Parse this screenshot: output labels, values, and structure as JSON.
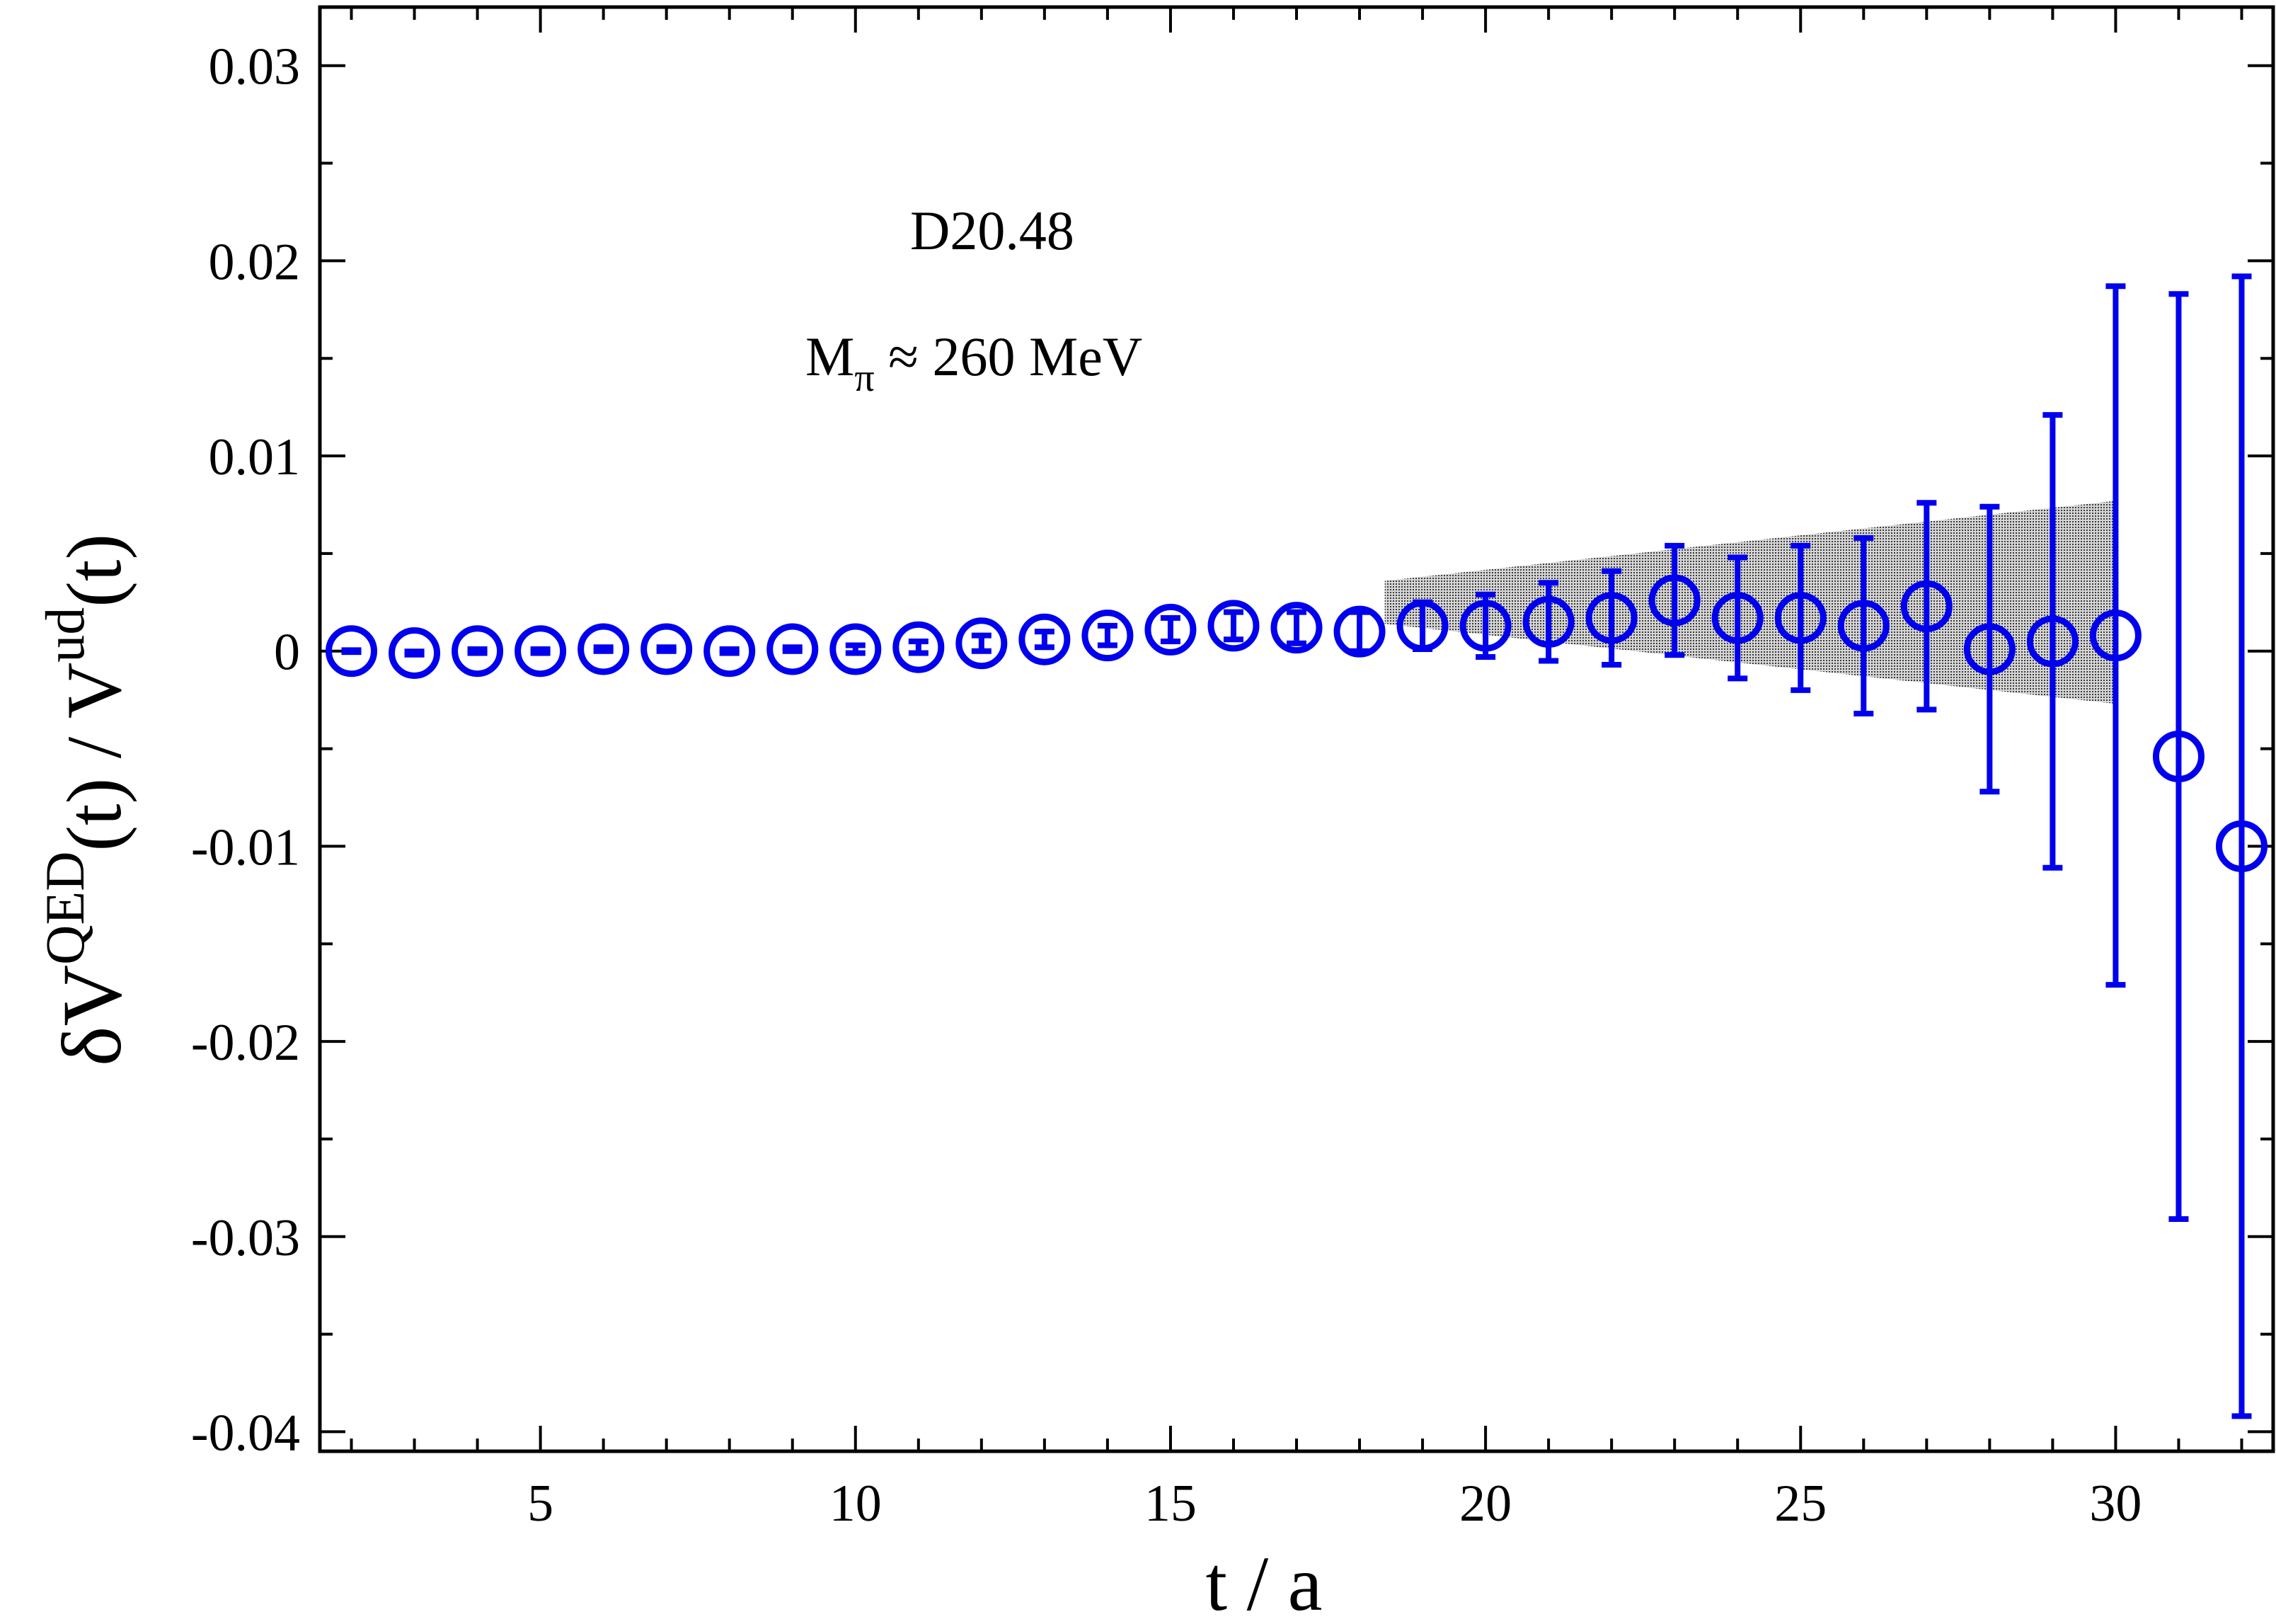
{
  "chart_data": {
    "type": "scatter",
    "xlabel": "t / a",
    "ylabel": {
      "parts": [
        "δV",
        "QED",
        "(t) / V",
        "ud",
        "(t)"
      ]
    },
    "xlim": [
      1.5,
      32.5
    ],
    "ylim": [
      -0.041,
      0.033
    ],
    "x_major_ticks": [
      5,
      10,
      15,
      20,
      25,
      30
    ],
    "x_major_tick_labels": [
      "5",
      "10",
      "15",
      "20",
      "25",
      "30"
    ],
    "x_minor_step": 1,
    "y_major_ticks": [
      -0.04,
      -0.03,
      -0.02,
      -0.01,
      0,
      0.01,
      0.02,
      0.03
    ],
    "y_major_tick_labels": [
      "-0.04",
      "-0.03",
      "-0.02",
      "-0.01",
      "0",
      "0.01",
      "0.02",
      "0.03"
    ],
    "y_minor_step": 0.005,
    "grid": false,
    "annotations": [
      {
        "id": "ensemble",
        "text": "D20.48"
      },
      {
        "id": "pion-mass",
        "parts": [
          "M",
          "π",
          " ≈ 260 MeV"
        ]
      }
    ],
    "series": [
      {
        "marker": "open-circle",
        "color": "#0000ee",
        "points": [
          {
            "x": 2,
            "y": 0.0,
            "err": 5e-05
          },
          {
            "x": 3,
            "y": -0.0001,
            "err": 8e-05
          },
          {
            "x": 4,
            "y": 0.0,
            "err": 0.0001
          },
          {
            "x": 5,
            "y": 0.0,
            "err": 0.0001
          },
          {
            "x": 6,
            "y": 0.0001,
            "err": 0.0001
          },
          {
            "x": 7,
            "y": 0.0001,
            "err": 0.0001
          },
          {
            "x": 8,
            "y": 0.0,
            "err": 0.0001
          },
          {
            "x": 9,
            "y": 0.0001,
            "err": 0.0001
          },
          {
            "x": 10,
            "y": 0.0001,
            "err": 0.0002
          },
          {
            "x": 11,
            "y": 0.0002,
            "err": 0.0003
          },
          {
            "x": 12,
            "y": 0.0004,
            "err": 0.0004
          },
          {
            "x": 13,
            "y": 0.0006,
            "err": 0.0004
          },
          {
            "x": 14,
            "y": 0.0008,
            "err": 0.0005
          },
          {
            "x": 15,
            "y": 0.0011,
            "err": 0.0006
          },
          {
            "x": 16,
            "y": 0.0013,
            "err": 0.0007
          },
          {
            "x": 17,
            "y": 0.0012,
            "err": 0.0008
          },
          {
            "x": 18,
            "y": 0.001,
            "err": 0.001
          },
          {
            "x": 19,
            "y": 0.0013,
            "err": 0.0012
          },
          {
            "x": 20,
            "y": 0.0013,
            "err": 0.0016
          },
          {
            "x": 21,
            "y": 0.0015,
            "err": 0.002
          },
          {
            "x": 22,
            "y": 0.0017,
            "err": 0.0024
          },
          {
            "x": 23,
            "y": 0.0026,
            "err": 0.0028
          },
          {
            "x": 24,
            "y": 0.0017,
            "err": 0.0031
          },
          {
            "x": 25,
            "y": 0.0017,
            "err": 0.0037
          },
          {
            "x": 26,
            "y": 0.0013,
            "err": 0.0045
          },
          {
            "x": 27,
            "y": 0.0023,
            "err": 0.0053
          },
          {
            "x": 28,
            "y": 0.0001,
            "err": 0.0073
          },
          {
            "x": 29,
            "y": 0.0005,
            "err": 0.0116
          },
          {
            "x": 30,
            "y": 0.0008,
            "err": 0.0179
          },
          {
            "x": 31,
            "y": -0.0054,
            "err": 0.0237
          },
          {
            "x": 32,
            "y": -0.01,
            "err": 0.0292
          }
        ]
      }
    ],
    "fit_band": {
      "color": "#000000",
      "fill": "stippled-gray",
      "x_range": [
        18.4,
        30.0
      ],
      "center": 0.0025,
      "half_width_at_start": 0.0011,
      "half_width_at_end": 0.0052
    }
  }
}
